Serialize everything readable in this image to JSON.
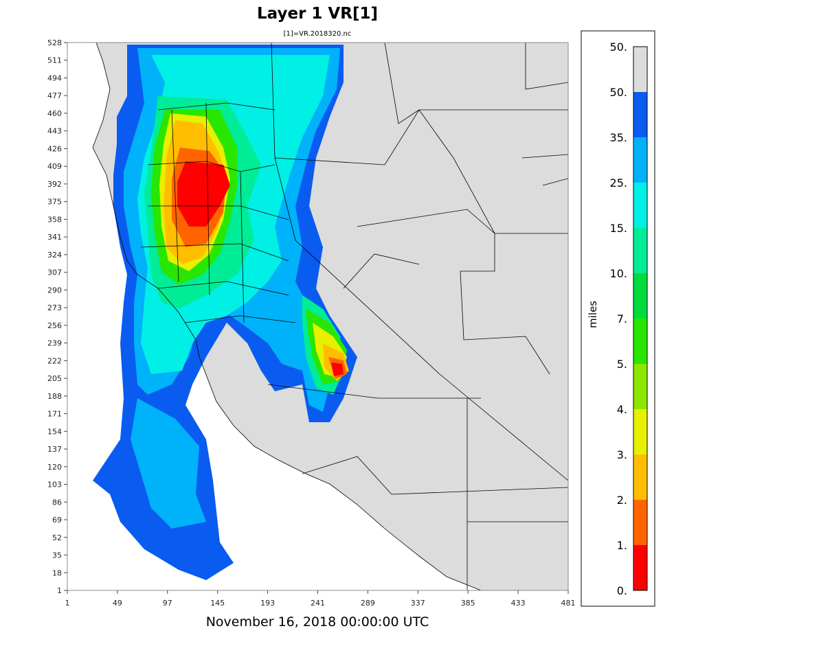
{
  "chart_data": {
    "type": "heatmap",
    "title": "Layer 1 VR[1]",
    "subtitle": "[1]=VR.2018320.nc",
    "timestamp": "November 16, 2018 00:00:00 UTC",
    "x_ticks": [
      "1",
      "49",
      "97",
      "145",
      "193",
      "241",
      "289",
      "337",
      "385",
      "433",
      "481"
    ],
    "y_ticks": [
      "1",
      "18",
      "35",
      "52",
      "69",
      "86",
      "103",
      "120",
      "137",
      "154",
      "171",
      "188",
      "205",
      "222",
      "239",
      "256",
      "273",
      "290",
      "307",
      "324",
      "341",
      "358",
      "375",
      "392",
      "409",
      "426",
      "443",
      "460",
      "477",
      "494",
      "511",
      "528"
    ],
    "xlim": [
      1,
      481
    ],
    "ylim": [
      1,
      528
    ],
    "colorbar": {
      "units": "miles",
      "labels": [
        "50.",
        "50.",
        "35.",
        "25.",
        "15.",
        "10.",
        "7.",
        "5.",
        "4.",
        "3.",
        "2.",
        "1.",
        "0."
      ],
      "colors": [
        "#dcdcdc",
        "#0a5cf0",
        "#00b2fa",
        "#00f0e6",
        "#00ec96",
        "#00dc3c",
        "#28e600",
        "#8ce600",
        "#e6f000",
        "#ffbf00",
        "#ff6400",
        "#ff0000"
      ],
      "background": "#dcdcdc"
    },
    "map_background": "#dcdcdc"
  }
}
